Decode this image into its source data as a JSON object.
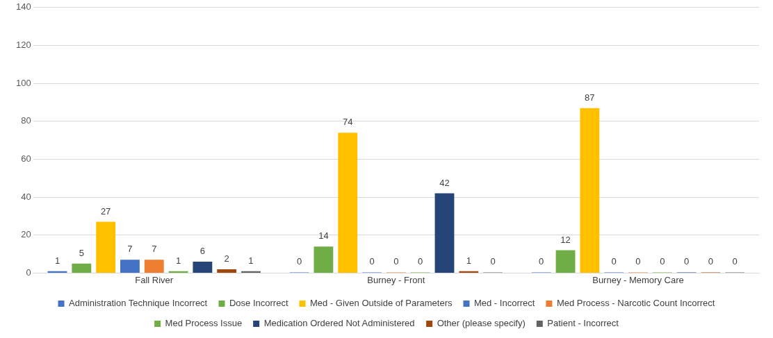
{
  "chart_data": {
    "type": "bar",
    "categories": [
      "Fall River",
      "Burney - Front",
      "Burney - Memory Care"
    ],
    "series": [
      {
        "name": "Administration Technique Incorrect",
        "color": "#4472c4",
        "values": [
          1,
          0,
          0
        ]
      },
      {
        "name": "Dose Incorrect",
        "color": "#70ad47",
        "values": [
          5,
          14,
          12
        ]
      },
      {
        "name": "Med - Given Outside of Parameters",
        "color": "#ffc000",
        "values": [
          27,
          74,
          87
        ]
      },
      {
        "name": "Med - Incorrect",
        "color": "#4472c4",
        "values": [
          7,
          0,
          0
        ]
      },
      {
        "name": "Med Process - Narcotic Count Incorrect",
        "color": "#ed7d31",
        "values": [
          7,
          0,
          0
        ]
      },
      {
        "name": "Med Process Issue",
        "color": "#70ad47",
        "values": [
          1,
          0,
          0
        ]
      },
      {
        "name": "Medication Ordered Not Administered",
        "color": "#264478",
        "values": [
          6,
          42,
          0
        ]
      },
      {
        "name": "Other (please specify)",
        "color": "#9e480e",
        "values": [
          2,
          1,
          0
        ]
      },
      {
        "name": "Patient - Incorrect",
        "color": "#636363",
        "values": [
          1,
          0,
          0
        ]
      }
    ],
    "ylim": [
      0,
      140
    ],
    "yticks": [
      0,
      20,
      40,
      60,
      80,
      100,
      120,
      140
    ],
    "grid": "y",
    "legend": "bottom",
    "data_labels": true
  }
}
